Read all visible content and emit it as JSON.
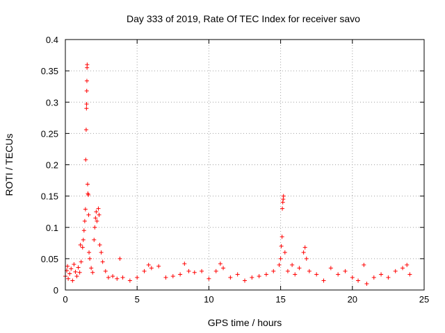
{
  "chart_data": {
    "type": "scatter",
    "title": "Day 333 of 2019, Rate Of TEC Index for receiver savo",
    "xlabel": "GPS time / hours",
    "ylabel": "ROTI / TECUs",
    "xlim": [
      0,
      25
    ],
    "ylim": [
      0,
      0.4
    ],
    "xticks": [
      0,
      5,
      10,
      15,
      20,
      25
    ],
    "xtick_labels": [
      "0",
      "5",
      "10",
      "15",
      "20",
      "25"
    ],
    "yticks": [
      0,
      0.05,
      0.1,
      0.15,
      0.2,
      0.25,
      0.3,
      0.35,
      0.4
    ],
    "ytick_labels": [
      "0",
      "0.05",
      "0.1",
      "0.15",
      "0.2",
      "0.25",
      "0.3",
      "0.35",
      "0.4"
    ],
    "grid": true,
    "marker": "plus",
    "series": [
      {
        "name": "ROTI",
        "color": "#ff0000",
        "points": [
          [
            0.0,
            0.022
          ],
          [
            0.1,
            0.031
          ],
          [
            0.15,
            0.038
          ],
          [
            0.2,
            0.018
          ],
          [
            0.3,
            0.026
          ],
          [
            0.4,
            0.034
          ],
          [
            0.5,
            0.015
          ],
          [
            0.6,
            0.041
          ],
          [
            0.7,
            0.029
          ],
          [
            0.8,
            0.022
          ],
          [
            0.9,
            0.036
          ],
          [
            1.0,
            0.028
          ],
          [
            1.05,
            0.072
          ],
          [
            1.1,
            0.045
          ],
          [
            1.2,
            0.068
          ],
          [
            1.25,
            0.08
          ],
          [
            1.3,
            0.095
          ],
          [
            1.35,
            0.11
          ],
          [
            1.4,
            0.129
          ],
          [
            1.42,
            0.208
          ],
          [
            1.45,
            0.256
          ],
          [
            1.47,
            0.29
          ],
          [
            1.48,
            0.297
          ],
          [
            1.49,
            0.318
          ],
          [
            1.5,
            0.334
          ],
          [
            1.51,
            0.355
          ],
          [
            1.52,
            0.36
          ],
          [
            1.55,
            0.169
          ],
          [
            1.57,
            0.154
          ],
          [
            1.6,
            0.152
          ],
          [
            1.62,
            0.12
          ],
          [
            1.65,
            0.06
          ],
          [
            1.7,
            0.05
          ],
          [
            1.8,
            0.035
          ],
          [
            1.9,
            0.028
          ],
          [
            2.0,
            0.08
          ],
          [
            2.05,
            0.1
          ],
          [
            2.1,
            0.115
          ],
          [
            2.15,
            0.125
          ],
          [
            2.2,
            0.11
          ],
          [
            2.3,
            0.13
          ],
          [
            2.35,
            0.12
          ],
          [
            2.4,
            0.072
          ],
          [
            2.5,
            0.06
          ],
          [
            2.6,
            0.045
          ],
          [
            2.8,
            0.03
          ],
          [
            3.0,
            0.02
          ],
          [
            3.3,
            0.022
          ],
          [
            3.6,
            0.018
          ],
          [
            3.8,
            0.05
          ],
          [
            4.0,
            0.02
          ],
          [
            4.5,
            0.015
          ],
          [
            5.0,
            0.02
          ],
          [
            5.5,
            0.03
          ],
          [
            5.8,
            0.04
          ],
          [
            6.0,
            0.035
          ],
          [
            6.5,
            0.038
          ],
          [
            7.0,
            0.02
          ],
          [
            7.5,
            0.022
          ],
          [
            8.0,
            0.025
          ],
          [
            8.3,
            0.042
          ],
          [
            8.6,
            0.03
          ],
          [
            9.0,
            0.028
          ],
          [
            9.5,
            0.03
          ],
          [
            10.0,
            0.018
          ],
          [
            10.5,
            0.03
          ],
          [
            10.8,
            0.042
          ],
          [
            11.0,
            0.035
          ],
          [
            11.5,
            0.02
          ],
          [
            12.0,
            0.025
          ],
          [
            12.5,
            0.015
          ],
          [
            13.0,
            0.02
          ],
          [
            13.5,
            0.022
          ],
          [
            14.0,
            0.025
          ],
          [
            14.5,
            0.03
          ],
          [
            14.9,
            0.04
          ],
          [
            15.0,
            0.05
          ],
          [
            15.05,
            0.07
          ],
          [
            15.1,
            0.085
          ],
          [
            15.12,
            0.13
          ],
          [
            15.15,
            0.14
          ],
          [
            15.18,
            0.145
          ],
          [
            15.2,
            0.15
          ],
          [
            15.3,
            0.06
          ],
          [
            15.5,
            0.03
          ],
          [
            15.8,
            0.04
          ],
          [
            16.0,
            0.025
          ],
          [
            16.3,
            0.035
          ],
          [
            16.6,
            0.06
          ],
          [
            16.7,
            0.068
          ],
          [
            16.8,
            0.05
          ],
          [
            17.0,
            0.03
          ],
          [
            17.5,
            0.025
          ],
          [
            18.0,
            0.015
          ],
          [
            18.5,
            0.035
          ],
          [
            19.0,
            0.025
          ],
          [
            19.5,
            0.03
          ],
          [
            20.0,
            0.02
          ],
          [
            20.4,
            0.015
          ],
          [
            20.8,
            0.04
          ],
          [
            21.0,
            0.01
          ],
          [
            21.5,
            0.02
          ],
          [
            22.0,
            0.025
          ],
          [
            22.5,
            0.02
          ],
          [
            23.0,
            0.03
          ],
          [
            23.5,
            0.035
          ],
          [
            23.8,
            0.04
          ],
          [
            24.0,
            0.025
          ]
        ]
      }
    ]
  }
}
